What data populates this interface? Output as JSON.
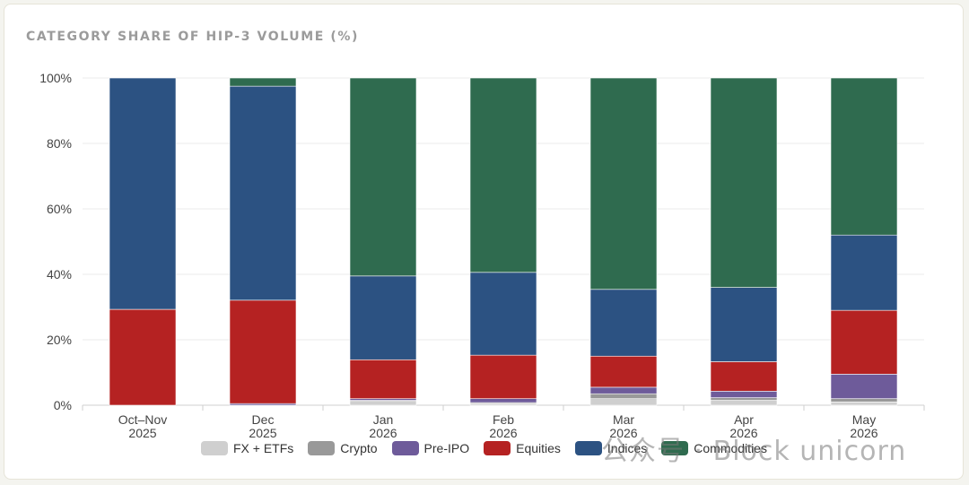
{
  "chart_data": {
    "type": "bar",
    "stacked": true,
    "title": "CATEGORY SHARE OF HIP-3 VOLUME (%)",
    "xlabel": "",
    "ylabel": "",
    "ylim": [
      0,
      100
    ],
    "yticks": [
      "0%",
      "20%",
      "40%",
      "60%",
      "80%",
      "100%"
    ],
    "grid": true,
    "legend_position": "bottom",
    "categories": [
      [
        "Oct–Nov",
        "2025"
      ],
      [
        "Dec",
        "2025"
      ],
      [
        "Jan",
        "2026"
      ],
      [
        "Feb",
        "2026"
      ],
      [
        "Mar",
        "2026"
      ],
      [
        "Apr",
        "2026"
      ],
      [
        "May",
        "2026"
      ]
    ],
    "series": [
      {
        "name": "FX + ETFs",
        "color": "#cfcfcf",
        "values": [
          0,
          0,
          1.2,
          0.5,
          2,
          1.5,
          1
        ]
      },
      {
        "name": "Crypto",
        "color": "#999999",
        "values": [
          0,
          0,
          0.3,
          0.3,
          1.5,
          0.8,
          1
        ]
      },
      {
        "name": "Pre-IPO",
        "color": "#6e5b9a",
        "values": [
          0,
          0.5,
          0.5,
          1.2,
          2,
          2,
          7.5
        ]
      },
      {
        "name": "Equities",
        "color": "#b52222",
        "values": [
          29.3,
          31.6,
          11.9,
          13.3,
          9.5,
          9,
          19.5
        ]
      },
      {
        "name": "Indices",
        "color": "#2c5282",
        "values": [
          70.7,
          65.4,
          25.6,
          25.3,
          20.4,
          22.7,
          23
        ]
      },
      {
        "name": "Commodities",
        "color": "#2f6b4f",
        "values": [
          0,
          2.5,
          60.5,
          59.4,
          64.6,
          64,
          48
        ]
      }
    ]
  },
  "watermark": "公众号 · Block unicorn"
}
